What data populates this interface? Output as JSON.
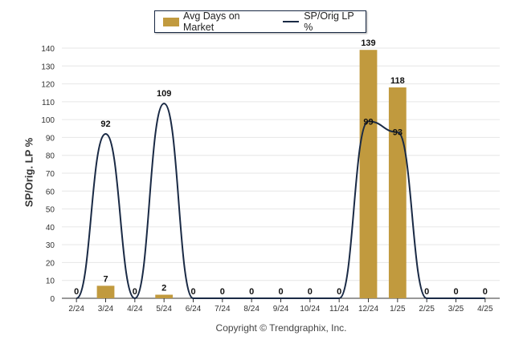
{
  "chart_data": {
    "type": "bar",
    "categories": [
      "2/24",
      "3/24",
      "4/24",
      "5/24",
      "6/24",
      "7/24",
      "8/24",
      "9/24",
      "10/24",
      "11/24",
      "12/24",
      "1/25",
      "2/25",
      "3/25",
      "4/25"
    ],
    "series": [
      {
        "name": "Avg Days on Market",
        "type": "bar",
        "values": [
          0,
          7,
          0,
          2,
          0,
          0,
          0,
          0,
          0,
          0,
          139,
          118,
          0,
          0,
          0
        ],
        "labels": [
          "0",
          "7",
          "0",
          "2",
          "0",
          "0",
          "0",
          "0",
          "0",
          "0",
          "139",
          "118",
          "0",
          "0",
          "0"
        ]
      },
      {
        "name": "SP/Orig LP %",
        "type": "line",
        "values": [
          0,
          92,
          0,
          109,
          0,
          0,
          0,
          0,
          0,
          0,
          99,
          93,
          0,
          0,
          0
        ],
        "labels": [
          "",
          "92",
          "",
          "109",
          "",
          "",
          "",
          "",
          "",
          "",
          "99",
          "93",
          "",
          "",
          ""
        ]
      }
    ],
    "ylabel": "SP/Orig. LP %",
    "yticks": [
      0,
      10,
      20,
      30,
      40,
      50,
      60,
      70,
      80,
      90,
      100,
      110,
      120,
      130,
      140
    ],
    "ylim": [
      0,
      140
    ],
    "grid": true,
    "legend_position": "top-center"
  },
  "colors": {
    "bar": "#c19a3e",
    "line": "#1a2a45"
  },
  "copyright": "Copyright © Trendgraphix, Inc."
}
